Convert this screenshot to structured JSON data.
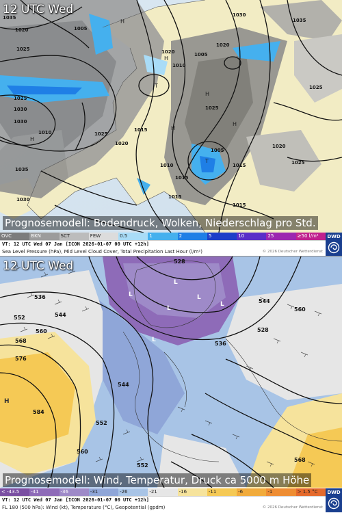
{
  "top_panel": {
    "time_label": "12 UTC Wed",
    "caption": "Prognosemodell: Bodendruck, Wolken, Niederschlag pro Std.",
    "legend": [
      {
        "label": "OVC",
        "color": "#7c7c7c",
        "text_color": "#ffffff"
      },
      {
        "label": "BKN",
        "color": "#9c9c9c",
        "text_color": "#ffffff"
      },
      {
        "label": "SCT",
        "color": "#bcbcbc",
        "text_color": "#222222"
      },
      {
        "label": "FEW",
        "color": "#dcdcdc",
        "text_color": "#222222"
      },
      {
        "label": "0.5",
        "color": "#a9dcf7",
        "text_color": "#222222"
      },
      {
        "label": "1",
        "color": "#45b0ee",
        "text_color": "#ffffff"
      },
      {
        "label": "2",
        "color": "#1f7fe6",
        "text_color": "#ffffff"
      },
      {
        "label": "5",
        "color": "#1e3fc8",
        "text_color": "#ffffff"
      },
      {
        "label": "10",
        "color": "#5a2fc8",
        "text_color": "#ffffff"
      },
      {
        "label": "25",
        "color": "#9c27b0",
        "text_color": "#ffffff"
      },
      {
        "label": "≥50 l/m²",
        "color": "#c0228e",
        "text_color": "#ffffff"
      }
    ],
    "valid_time": "VT: 12 UTC Wed  07 Jan [ICON 2026-01-07 00 UTC +12h]",
    "description": "Sea Level Pressure (hPa), Mid Level Cloud Cover, Total Precipitation Last Hour (l/m²)",
    "copyright": "© 2026 Deutscher Wetterdienst",
    "isobar_labels": [
      "1030",
      "1035",
      "1005",
      "1025",
      "1035",
      "1020",
      "1010",
      "1005",
      "1020",
      "1020",
      "1030",
      "1025",
      "1030",
      "1015",
      "1015",
      "1025",
      "1020",
      "1005",
      "1010",
      "1015",
      "1020",
      "1025",
      "1035",
      "1010",
      "1015",
      "1030",
      "1025",
      "1015",
      "1025"
    ],
    "center_labels": [
      "H",
      "H",
      "H",
      "H",
      "H",
      "T",
      "T",
      "H"
    ]
  },
  "bottom_panel": {
    "time_label": "12 UTC Wed",
    "caption": "Prognosemodell: Wind, Temperatur, Druck ca 5000 m Höhe",
    "legend": [
      {
        "label": "< -43.5",
        "color": "#7a4fa2",
        "text_color": "#ffffff"
      },
      {
        "label": "-41",
        "color": "#8e6bb8",
        "text_color": "#ffffff"
      },
      {
        "label": "-36",
        "color": "#9e8ac8",
        "text_color": "#ffffff"
      },
      {
        "label": "-31",
        "color": "#8fa6d8",
        "text_color": "#222222"
      },
      {
        "label": "-26",
        "color": "#a8c4e6",
        "text_color": "#222222"
      },
      {
        "label": "-21",
        "color": "#e6e6e6",
        "text_color": "#222222"
      },
      {
        "label": "-16",
        "color": "#f6e39c",
        "text_color": "#222222"
      },
      {
        "label": "-11",
        "color": "#f5c955",
        "text_color": "#222222"
      },
      {
        "label": "-6",
        "color": "#f1ab3c",
        "text_color": "#222222"
      },
      {
        "label": "-1",
        "color": "#ee8d33",
        "text_color": "#222222"
      },
      {
        "label": "> 1.5 °C",
        "color": "#e56a2c",
        "text_color": "#222222"
      }
    ],
    "valid_time": "VT: 12 UTC Wed  07 Jan [ICON 2026-01-07 00 UTC +12h]",
    "description": "FL 180 (500 hPa): Wind (kt), Temperature (°C), Geopotential (gpdm)",
    "copyright": "© 2026 Deutscher Wetterdienst",
    "height_labels": [
      "528",
      "536",
      "552",
      "544",
      "560",
      "568",
      "576",
      "584",
      "544",
      "552",
      "536",
      "528",
      "544",
      "560",
      "552",
      "560",
      "568"
    ],
    "center_labels": [
      "L",
      "L",
      "L",
      "L",
      "L",
      "L",
      "H"
    ]
  },
  "badge": {
    "text": "DWD"
  }
}
